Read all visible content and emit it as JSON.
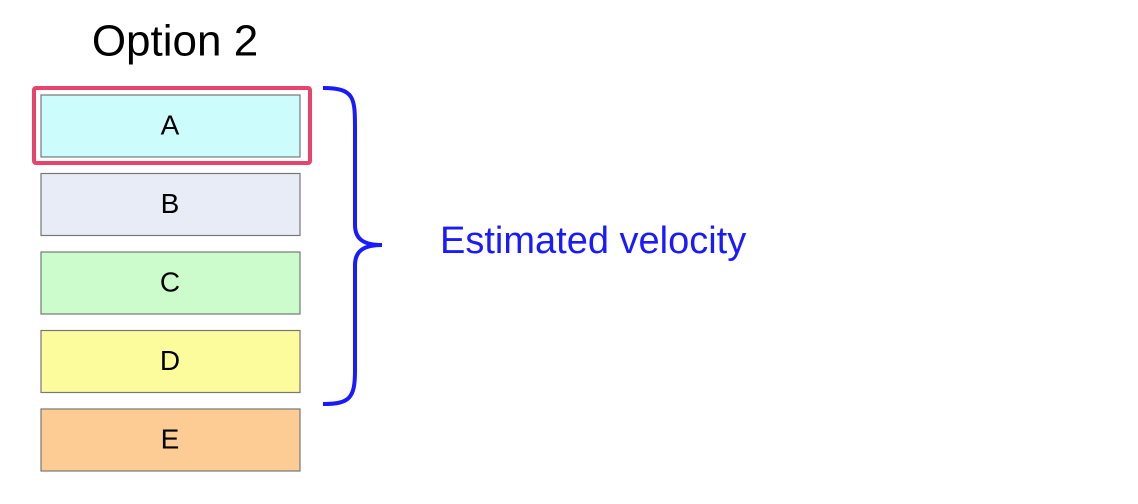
{
  "title": "Option 2",
  "items": [
    {
      "label": "A"
    },
    {
      "label": "B"
    },
    {
      "label": "C"
    },
    {
      "label": "D"
    },
    {
      "label": "E"
    }
  ],
  "brace_label": "Estimated velocity"
}
